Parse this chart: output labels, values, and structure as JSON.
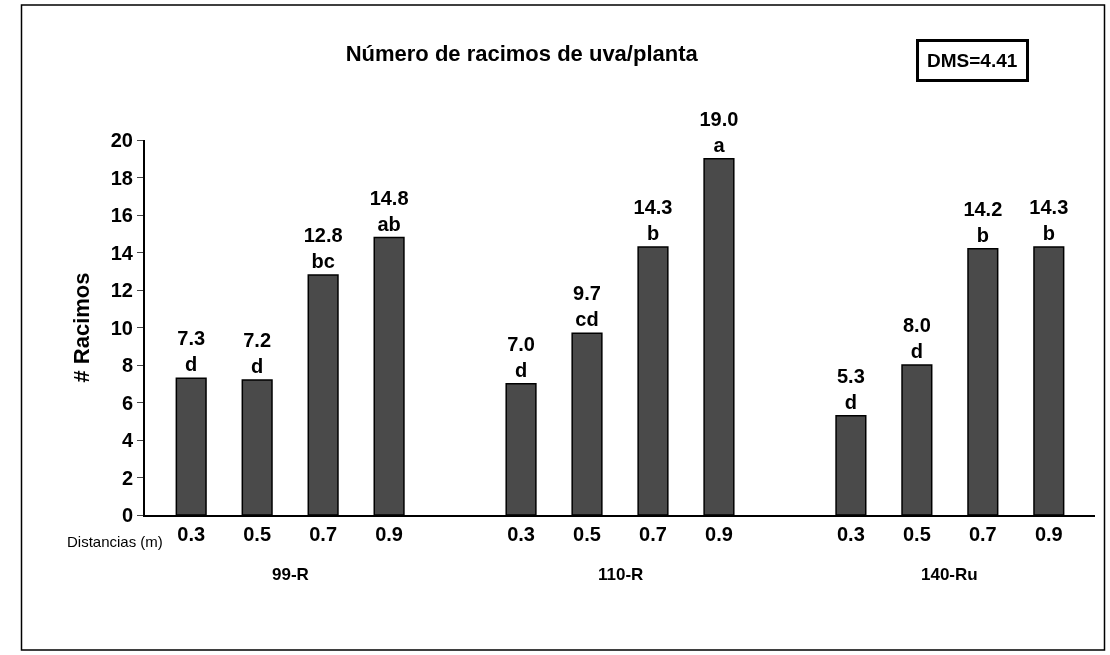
{
  "chart_data": {
    "type": "bar",
    "title": "Número de racimos de uva/planta",
    "ylabel": "# Racimos",
    "categories": [
      "0.3",
      "0.5",
      "0.7",
      "0.9",
      null,
      "0.3",
      "0.5",
      "0.7",
      "0.9",
      null,
      "0.3",
      "0.5",
      "0.7",
      "0.9"
    ],
    "values": [
      7.3,
      7.2,
      12.8,
      14.8,
      null,
      7.0,
      9.7,
      14.3,
      19.0,
      null,
      5.3,
      8.0,
      14.2,
      14.3
    ],
    "value_labels": [
      "7.3\nd",
      "7.2\nd",
      "12.8\nbc",
      "14.8\nab",
      null,
      "7.0\nd",
      "9.7\ncd",
      "14.3\nb",
      "19.0\na",
      null,
      "5.3\nd",
      "8.0\nd",
      "14.2\nb",
      "14.3\nb"
    ],
    "color": "#4a4a4a",
    "ylim": [
      0,
      20
    ],
    "yticks": [
      0,
      2,
      4,
      6,
      8,
      10,
      12,
      14,
      16,
      18,
      20
    ],
    "legend": false,
    "annotations": [
      "Distancias (m)",
      "99-R",
      "110-R",
      "140-Ru",
      "DMS=4.41"
    ]
  }
}
